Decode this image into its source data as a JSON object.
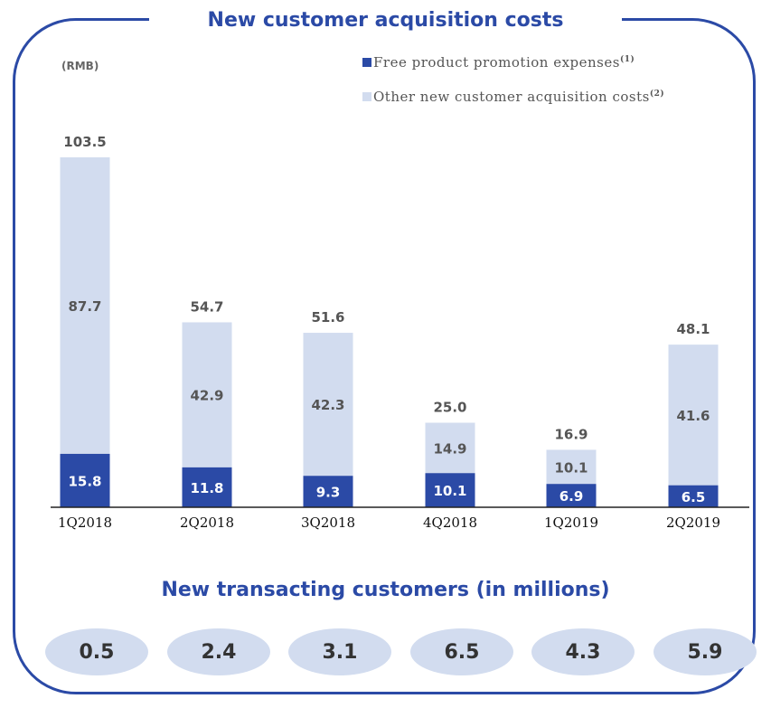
{
  "title": "New customer acquisition costs",
  "unit": "(RMB)",
  "legend": [
    {
      "label": "Free product promotion expenses",
      "note": "(1)",
      "color": "#2b4aa6"
    },
    {
      "label": "Other new customer acquisition costs",
      "note": "(2)",
      "color": "#d2dcef"
    }
  ],
  "chart_data": {
    "type": "bar",
    "stacked": true,
    "categories": [
      "1Q2018",
      "2Q2018",
      "3Q2018",
      "4Q2018",
      "1Q2019",
      "2Q2019"
    ],
    "series": [
      {
        "name": "Free product promotion expenses",
        "values": [
          15.8,
          11.8,
          9.3,
          10.1,
          6.9,
          6.5
        ]
      },
      {
        "name": "Other new customer acquisition costs",
        "values": [
          87.7,
          42.9,
          42.3,
          14.9,
          10.1,
          41.6
        ]
      }
    ],
    "totals": [
      103.5,
      54.7,
      51.6,
      25.0,
      16.9,
      48.1
    ],
    "total_labels": [
      "103.5",
      "54.7",
      "51.6",
      "25.0",
      "16.9",
      "48.1"
    ],
    "bottom_labels": [
      "15.8",
      "11.8",
      "9.3",
      "10.1",
      "6.9",
      "6.5"
    ],
    "top_labels": [
      "87.7",
      "42.9",
      "42.3",
      "14.9",
      "10.1",
      "41.6"
    ],
    "ylim": [
      0,
      103.5
    ]
  },
  "subtitle": "New transacting customers (in millions)",
  "customers": [
    "0.5",
    "2.4",
    "3.1",
    "6.5",
    "4.3",
    "5.9"
  ]
}
